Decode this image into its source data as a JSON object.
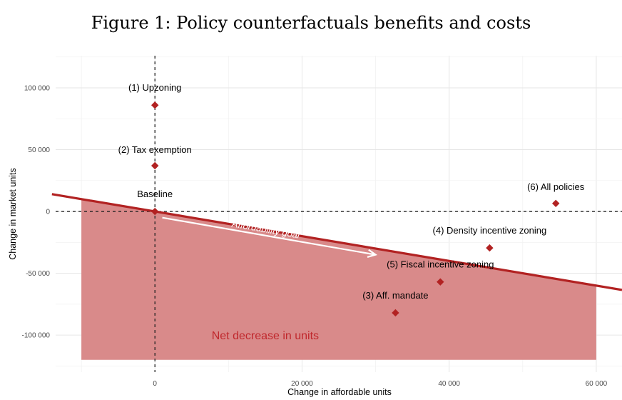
{
  "chart_data": {
    "type": "scatter",
    "title": "Figure 1: Policy counterfactuals benefits and costs",
    "xlabel": "Change in affordable units",
    "ylabel": "Change in market units",
    "xlim": [
      -13500,
      63500
    ],
    "ylim": [
      -130000,
      126000
    ],
    "xticks": [
      0,
      20000,
      40000,
      60000
    ],
    "xtick_labels": [
      "0",
      "20 000",
      "40 000",
      "60 000"
    ],
    "yticks": [
      100000,
      50000,
      0,
      -50000,
      -100000
    ],
    "ytick_labels": [
      "100 000",
      "50 000",
      "0",
      "-50 000",
      "-100 000"
    ],
    "grid": true,
    "points": [
      {
        "label": "(1) Upzoning",
        "x": 0,
        "y": 86000
      },
      {
        "label": "(2) Tax exemption",
        "x": 0,
        "y": 37000
      },
      {
        "label": "Baseline",
        "x": 0,
        "y": 0
      },
      {
        "label": "(6) All policies",
        "x": 54500,
        "y": 6500
      },
      {
        "label": "(4) Density incentive zoning",
        "x": 45500,
        "y": -29500
      },
      {
        "label": "(5) Fiscal incentive zoning",
        "x": 38800,
        "y": -57000
      },
      {
        "label": "(3) Aff. mandate",
        "x": 32700,
        "y": -82000
      }
    ],
    "reference_lines": {
      "x": 0,
      "y": 0
    },
    "frontier_line": {
      "x": [
        -14000,
        63500
      ],
      "y": [
        14000,
        -63500
      ]
    },
    "shaded_region": {
      "label": "Net decrease in units",
      "x_range": [
        -10000,
        60000
      ],
      "y_floor": -120000
    },
    "arrow": {
      "label": "Affordability goal",
      "from": [
        1000,
        -5000
      ],
      "to": [
        30000,
        -35000
      ]
    },
    "colors": {
      "marker": "#b22222",
      "frontier": "#b22222",
      "region_fill": "#d98a8a",
      "region_label": "#c0282d",
      "arrow": "#ffffff"
    }
  }
}
